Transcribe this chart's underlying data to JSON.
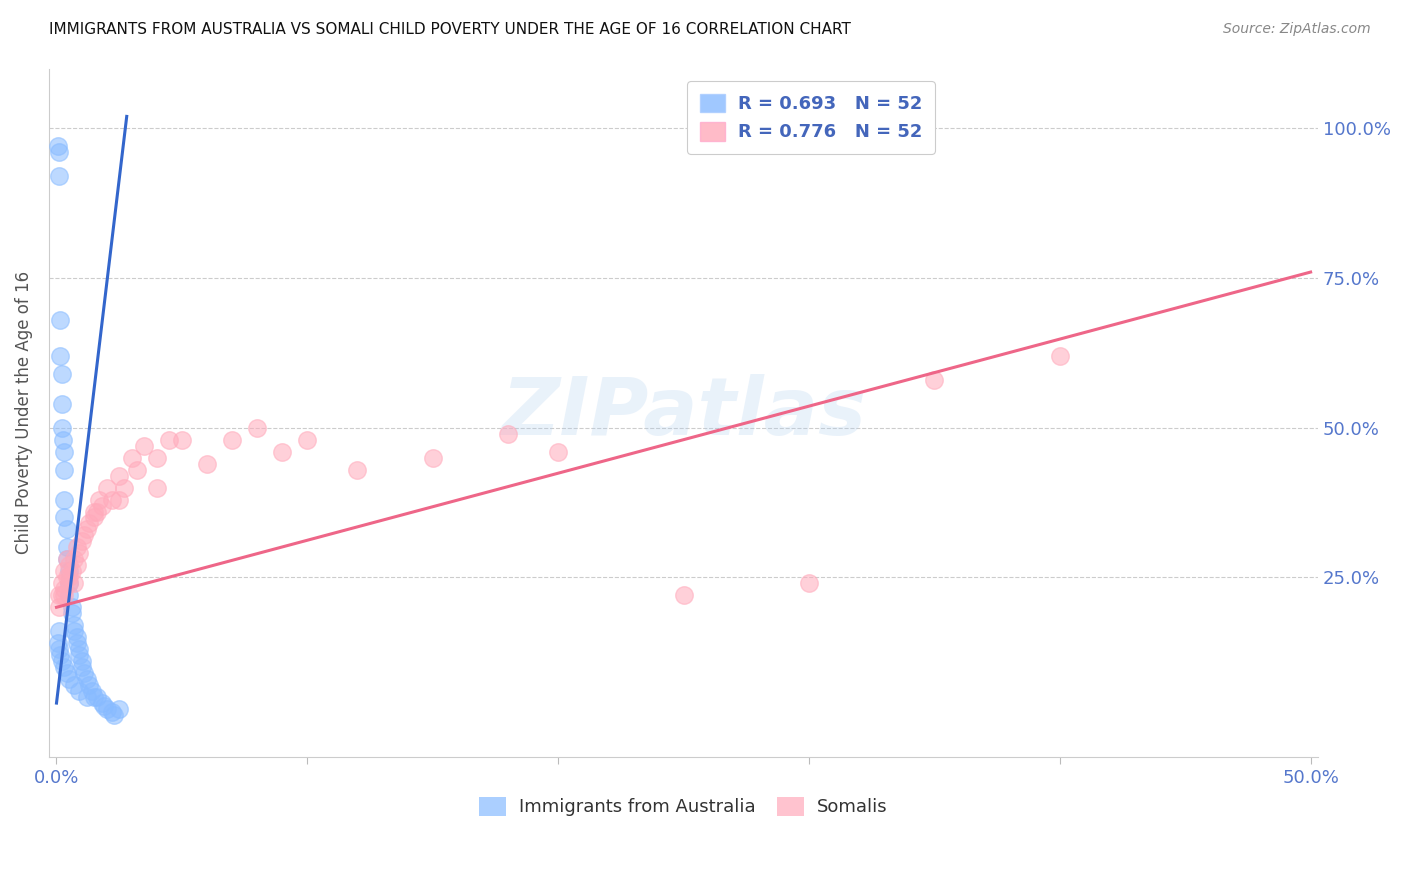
{
  "title": "IMMIGRANTS FROM AUSTRALIA VS SOMALI CHILD POVERTY UNDER THE AGE OF 16 CORRELATION CHART",
  "source": "Source: ZipAtlas.com",
  "ylabel": "Child Poverty Under the Age of 16",
  "blue_color": "#88bbff",
  "pink_color": "#ffaabb",
  "blue_line_color": "#3366cc",
  "pink_line_color": "#ee6688",
  "watermark_text": "ZIPatlas",
  "xlim": [
    -0.003,
    0.503
  ],
  "ylim": [
    -0.05,
    1.1
  ],
  "xticks": [
    0.0,
    0.1,
    0.2,
    0.3,
    0.4,
    0.5
  ],
  "xtick_labels": [
    "0.0%",
    "",
    "",
    "",
    "",
    "50.0%"
  ],
  "yticks": [
    0.25,
    0.5,
    0.75,
    1.0
  ],
  "ytick_labels": [
    "25.0%",
    "50.0%",
    "75.0%",
    "100.0%"
  ],
  "legend1_label": "R = 0.693   N = 52",
  "legend2_label": "R = 0.776   N = 52",
  "bottom_legend_labels": [
    "Immigrants from Australia",
    "Somalis"
  ],
  "blue_x": [
    0.0005,
    0.001,
    0.001,
    0.0015,
    0.0015,
    0.002,
    0.002,
    0.002,
    0.0025,
    0.003,
    0.003,
    0.003,
    0.003,
    0.004,
    0.004,
    0.004,
    0.005,
    0.005,
    0.005,
    0.006,
    0.006,
    0.007,
    0.007,
    0.008,
    0.008,
    0.009,
    0.009,
    0.01,
    0.01,
    0.011,
    0.012,
    0.013,
    0.014,
    0.015,
    0.016,
    0.018,
    0.019,
    0.02,
    0.022,
    0.023,
    0.001,
    0.0005,
    0.001,
    0.0015,
    0.002,
    0.003,
    0.004,
    0.005,
    0.007,
    0.009,
    0.012,
    0.025
  ],
  "blue_y": [
    0.97,
    0.96,
    0.92,
    0.68,
    0.62,
    0.59,
    0.54,
    0.5,
    0.48,
    0.46,
    0.43,
    0.38,
    0.35,
    0.33,
    0.3,
    0.28,
    0.26,
    0.24,
    0.22,
    0.2,
    0.19,
    0.17,
    0.16,
    0.15,
    0.14,
    0.13,
    0.12,
    0.11,
    0.1,
    0.09,
    0.08,
    0.07,
    0.06,
    0.05,
    0.05,
    0.04,
    0.035,
    0.03,
    0.025,
    0.02,
    0.16,
    0.14,
    0.13,
    0.12,
    0.11,
    0.1,
    0.09,
    0.08,
    0.07,
    0.06,
    0.05,
    0.03
  ],
  "pink_x": [
    0.001,
    0.001,
    0.002,
    0.002,
    0.003,
    0.003,
    0.004,
    0.004,
    0.005,
    0.005,
    0.006,
    0.007,
    0.008,
    0.008,
    0.009,
    0.01,
    0.011,
    0.012,
    0.013,
    0.015,
    0.016,
    0.017,
    0.018,
    0.02,
    0.022,
    0.025,
    0.027,
    0.03,
    0.032,
    0.035,
    0.04,
    0.045,
    0.05,
    0.06,
    0.07,
    0.08,
    0.09,
    0.1,
    0.12,
    0.15,
    0.18,
    0.2,
    0.25,
    0.3,
    0.35,
    0.4,
    0.003,
    0.005,
    0.007,
    0.015,
    0.025,
    0.04
  ],
  "pink_y": [
    0.22,
    0.2,
    0.24,
    0.22,
    0.26,
    0.23,
    0.28,
    0.25,
    0.27,
    0.24,
    0.26,
    0.28,
    0.3,
    0.27,
    0.29,
    0.31,
    0.32,
    0.33,
    0.34,
    0.36,
    0.36,
    0.38,
    0.37,
    0.4,
    0.38,
    0.42,
    0.4,
    0.45,
    0.43,
    0.47,
    0.45,
    0.48,
    0.48,
    0.44,
    0.48,
    0.5,
    0.46,
    0.48,
    0.43,
    0.45,
    0.49,
    0.46,
    0.22,
    0.24,
    0.58,
    0.62,
    0.22,
    0.25,
    0.24,
    0.35,
    0.38,
    0.4
  ],
  "blue_trend_x": [
    0.0,
    0.028
  ],
  "blue_trend_y": [
    0.04,
    1.02
  ],
  "pink_trend_x": [
    0.0,
    0.5
  ],
  "pink_trend_y": [
    0.2,
    0.76
  ]
}
